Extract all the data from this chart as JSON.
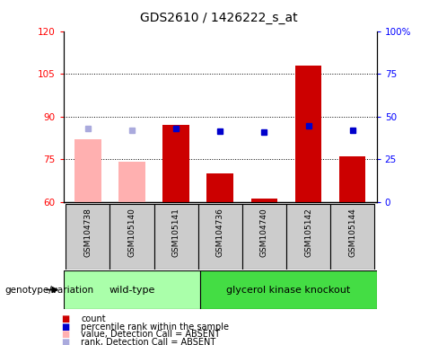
{
  "title": "GDS2610 / 1426222_s_at",
  "samples": [
    "GSM104738",
    "GSM105140",
    "GSM105141",
    "GSM104736",
    "GSM104740",
    "GSM105142",
    "GSM105144"
  ],
  "bar_values": [
    82.0,
    74.0,
    87.0,
    70.0,
    61.0,
    108.0,
    76.0
  ],
  "bar_absent": [
    true,
    true,
    false,
    false,
    false,
    false,
    false
  ],
  "percentile_values": [
    43.0,
    42.0,
    43.0,
    41.5,
    41.0,
    44.5,
    42.0
  ],
  "percentile_absent": [
    true,
    true,
    false,
    false,
    false,
    false,
    false
  ],
  "ylim_left": [
    60,
    120
  ],
  "ylim_right": [
    0,
    100
  ],
  "yticks_left": [
    60,
    75,
    90,
    105,
    120
  ],
  "yticks_right": [
    0,
    25,
    50,
    75,
    100
  ],
  "bar_color_normal": "#cc0000",
  "bar_color_absent": "#ffb0b0",
  "percentile_color_normal": "#0000cc",
  "percentile_color_absent": "#aaaadd",
  "label_bg_color": "#cccccc",
  "wt_color": "#aaffaa",
  "gk_color": "#44dd44",
  "legend_items": [
    {
      "label": "count",
      "color": "#cc0000"
    },
    {
      "label": "percentile rank within the sample",
      "color": "#0000cc"
    },
    {
      "label": "value, Detection Call = ABSENT",
      "color": "#ffb0b0"
    },
    {
      "label": "rank, Detection Call = ABSENT",
      "color": "#aaaadd"
    }
  ]
}
